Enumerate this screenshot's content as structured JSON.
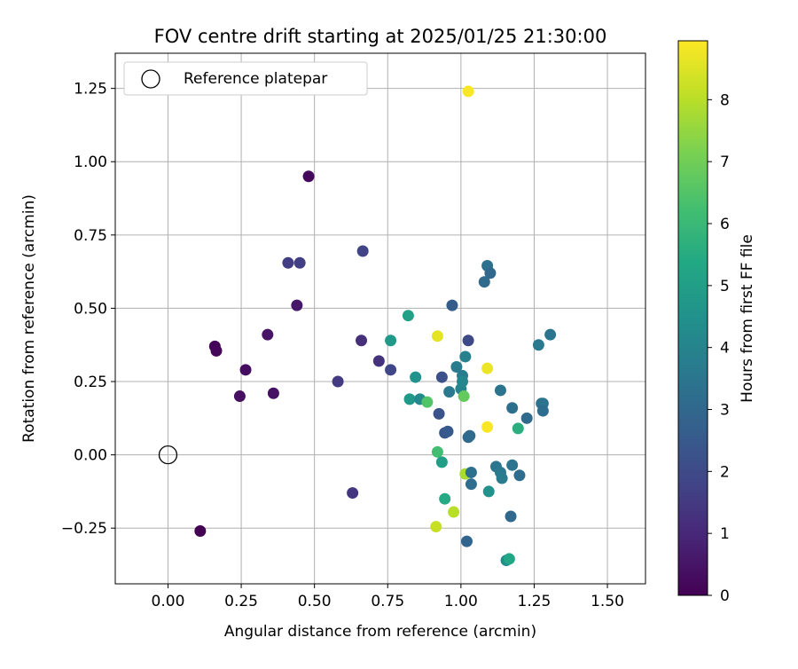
{
  "chart_data": {
    "type": "scatter",
    "title": "FOV centre drift starting at 2025/01/25 21:30:00",
    "xlabel": "Angular distance from reference (arcmin)",
    "ylabel": "Rotation from reference (arcmin)",
    "xlim": [
      -0.18,
      1.63
    ],
    "ylim": [
      -0.44,
      1.37
    ],
    "xticks": [
      0.0,
      0.25,
      0.5,
      0.75,
      1.0,
      1.25,
      1.5
    ],
    "xtick_labels": [
      "0.00",
      "0.25",
      "0.50",
      "0.75",
      "1.00",
      "1.25",
      "1.50"
    ],
    "yticks": [
      -0.25,
      0.0,
      0.25,
      0.5,
      0.75,
      1.0,
      1.25
    ],
    "ytick_labels": [
      "−0.25",
      "0.00",
      "0.25",
      "0.50",
      "0.75",
      "1.00",
      "1.25"
    ],
    "grid": true,
    "legend": {
      "position": "top-left",
      "entries": [
        {
          "label": "Reference platepar",
          "marker": "open-circle"
        }
      ]
    },
    "reference_point": {
      "x": 0.0,
      "y": 0.0
    },
    "colorbar": {
      "label": "Hours from first FF file",
      "colormap": "viridis",
      "range": [
        0,
        8.95
      ],
      "ticks": [
        0,
        1,
        2,
        3,
        4,
        5,
        6,
        7,
        8
      ],
      "tick_labels": [
        "0",
        "1",
        "2",
        "3",
        "4",
        "5",
        "6",
        "7",
        "8"
      ]
    },
    "points": [
      {
        "x": 0.48,
        "y": 0.95,
        "hours": 0.2
      },
      {
        "x": 0.11,
        "y": -0.26,
        "hours": 0.0
      },
      {
        "x": 0.16,
        "y": 0.37,
        "hours": 0.1
      },
      {
        "x": 0.165,
        "y": 0.355,
        "hours": 0.15
      },
      {
        "x": 0.265,
        "y": 0.29,
        "hours": 0.3
      },
      {
        "x": 0.245,
        "y": 0.2,
        "hours": 0.35
      },
      {
        "x": 0.36,
        "y": 0.21,
        "hours": 0.4
      },
      {
        "x": 0.34,
        "y": 0.41,
        "hours": 0.5
      },
      {
        "x": 0.44,
        "y": 0.51,
        "hours": 0.6
      },
      {
        "x": 0.41,
        "y": 0.655,
        "hours": 1.6
      },
      {
        "x": 0.45,
        "y": 0.655,
        "hours": 1.65
      },
      {
        "x": 0.665,
        "y": 0.695,
        "hours": 1.8
      },
      {
        "x": 0.66,
        "y": 0.39,
        "hours": 1.2
      },
      {
        "x": 0.58,
        "y": 0.25,
        "hours": 1.5
      },
      {
        "x": 0.63,
        "y": -0.13,
        "hours": 1.4
      },
      {
        "x": 0.72,
        "y": 0.32,
        "hours": 1.3
      },
      {
        "x": 0.76,
        "y": 0.29,
        "hours": 1.9
      },
      {
        "x": 0.76,
        "y": 0.39,
        "hours": 4.8
      },
      {
        "x": 0.82,
        "y": 0.475,
        "hours": 5.1
      },
      {
        "x": 0.845,
        "y": 0.265,
        "hours": 4.5
      },
      {
        "x": 0.825,
        "y": 0.19,
        "hours": 4.8
      },
      {
        "x": 0.86,
        "y": 0.19,
        "hours": 4.2
      },
      {
        "x": 0.885,
        "y": 0.18,
        "hours": 6.5
      },
      {
        "x": 0.92,
        "y": 0.405,
        "hours": 8.6
      },
      {
        "x": 0.935,
        "y": 0.265,
        "hours": 2.2
      },
      {
        "x": 0.925,
        "y": 0.14,
        "hours": 2.3
      },
      {
        "x": 0.945,
        "y": 0.075,
        "hours": 2.4
      },
      {
        "x": 0.955,
        "y": 0.08,
        "hours": 2.5
      },
      {
        "x": 0.97,
        "y": 0.51,
        "hours": 2.6
      },
      {
        "x": 0.96,
        "y": 0.215,
        "hours": 3.6
      },
      {
        "x": 0.985,
        "y": 0.3,
        "hours": 3.7
      },
      {
        "x": 1.005,
        "y": 0.27,
        "hours": 3.8
      },
      {
        "x": 1.0,
        "y": 0.225,
        "hours": 4.0
      },
      {
        "x": 1.005,
        "y": 0.25,
        "hours": 4.1
      },
      {
        "x": 1.015,
        "y": 0.335,
        "hours": 3.9
      },
      {
        "x": 1.025,
        "y": 0.39,
        "hours": 2.0
      },
      {
        "x": 1.01,
        "y": 0.2,
        "hours": 6.8
      },
      {
        "x": 1.025,
        "y": 0.06,
        "hours": 3.0
      },
      {
        "x": 1.03,
        "y": 0.065,
        "hours": 3.1
      },
      {
        "x": 0.92,
        "y": 0.01,
        "hours": 6.2
      },
      {
        "x": 0.935,
        "y": -0.025,
        "hours": 5.0
      },
      {
        "x": 1.015,
        "y": -0.065,
        "hours": 7.8
      },
      {
        "x": 1.035,
        "y": -0.06,
        "hours": 3.3
      },
      {
        "x": 1.035,
        "y": -0.1,
        "hours": 3.2
      },
      {
        "x": 0.945,
        "y": -0.15,
        "hours": 5.4
      },
      {
        "x": 0.975,
        "y": -0.195,
        "hours": 8.0
      },
      {
        "x": 0.915,
        "y": -0.245,
        "hours": 8.2
      },
      {
        "x": 1.02,
        "y": -0.295,
        "hours": 2.9
      },
      {
        "x": 1.025,
        "y": 1.24,
        "hours": 8.9
      },
      {
        "x": 1.08,
        "y": 0.59,
        "hours": 3.1
      },
      {
        "x": 1.09,
        "y": 0.645,
        "hours": 3.3
      },
      {
        "x": 1.1,
        "y": 0.62,
        "hours": 3.0
      },
      {
        "x": 1.09,
        "y": 0.295,
        "hours": 8.7
      },
      {
        "x": 1.135,
        "y": 0.22,
        "hours": 3.4
      },
      {
        "x": 1.175,
        "y": 0.16,
        "hours": 3.3
      },
      {
        "x": 1.09,
        "y": 0.095,
        "hours": 8.9
      },
      {
        "x": 1.195,
        "y": 0.09,
        "hours": 5.6
      },
      {
        "x": 1.095,
        "y": -0.125,
        "hours": 4.5
      },
      {
        "x": 1.12,
        "y": -0.04,
        "hours": 3.5
      },
      {
        "x": 1.135,
        "y": -0.06,
        "hours": 3.6
      },
      {
        "x": 1.14,
        "y": -0.08,
        "hours": 3.7
      },
      {
        "x": 1.175,
        "y": -0.035,
        "hours": 3.5
      },
      {
        "x": 1.2,
        "y": -0.07,
        "hours": 3.2
      },
      {
        "x": 1.17,
        "y": -0.21,
        "hours": 3.0
      },
      {
        "x": 1.155,
        "y": -0.36,
        "hours": 4.3
      },
      {
        "x": 1.165,
        "y": -0.355,
        "hours": 5.3
      },
      {
        "x": 1.225,
        "y": 0.125,
        "hours": 3.1
      },
      {
        "x": 1.265,
        "y": 0.375,
        "hours": 3.6
      },
      {
        "x": 1.28,
        "y": 0.175,
        "hours": 3.3
      },
      {
        "x": 1.275,
        "y": 0.175,
        "hours": 3.4
      },
      {
        "x": 1.28,
        "y": 0.15,
        "hours": 3.2
      },
      {
        "x": 1.305,
        "y": 0.41,
        "hours": 3.5
      }
    ]
  }
}
